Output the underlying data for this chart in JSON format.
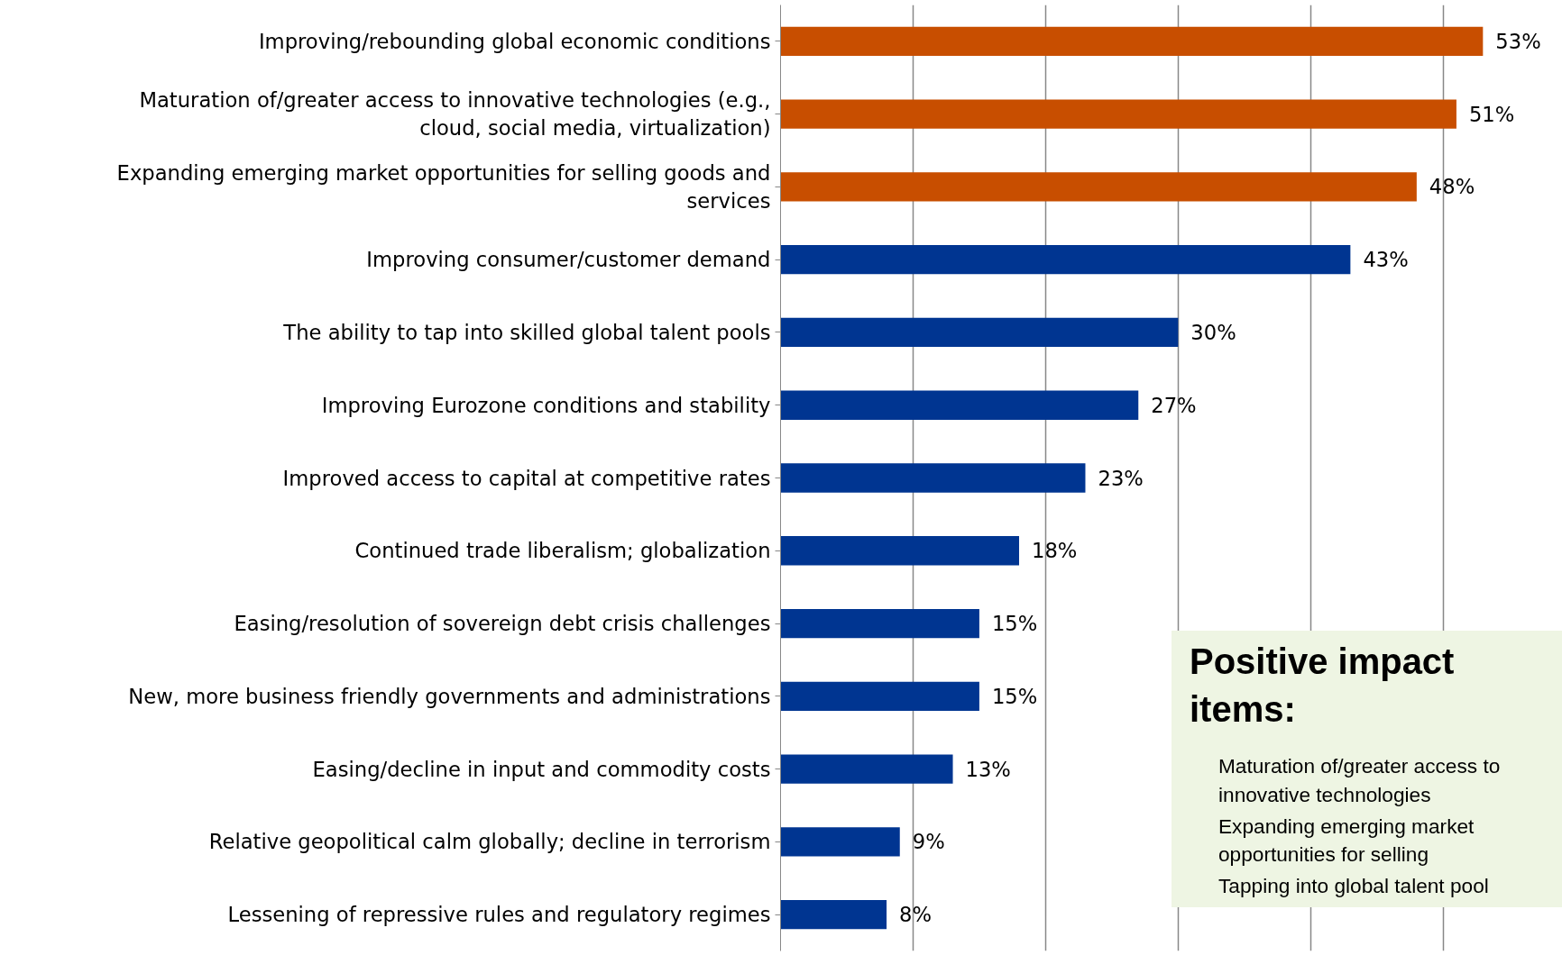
{
  "chart_data": {
    "type": "bar",
    "orientation": "horizontal",
    "categories": [
      "Improving/rebounding global economic conditions",
      "Maturation of/greater access to innovative technologies (e.g., cloud, social media, virtualization)",
      "Expanding emerging market opportunities for selling goods and services",
      "Improving consumer/customer demand",
      "The ability to tap into skilled global talent pools",
      "Improving Eurozone conditions and stability",
      "Improved access to capital at competitive rates",
      "Continued trade liberalism; globalization",
      "Easing/resolution of sovereign debt crisis challenges",
      "New, more business friendly governments and administrations",
      "Easing/decline in input and commodity costs",
      "Relative geopolitical calm globally; decline in terrorism",
      "Lessening of repressive rules and regulatory regimes"
    ],
    "values": [
      53,
      51,
      48,
      43,
      30,
      27,
      23,
      18,
      15,
      15,
      13,
      9,
      8
    ],
    "value_labels": [
      "53%",
      "51%",
      "48%",
      "43%",
      "30%",
      "27%",
      "23%",
      "18%",
      "15%",
      "15%",
      "13%",
      "9%",
      "8%"
    ],
    "colors": [
      "#c84e00",
      "#c84e00",
      "#c84e00",
      "#003591",
      "#003591",
      "#003591",
      "#003591",
      "#003591",
      "#003591",
      "#003591",
      "#003591",
      "#003591",
      "#003591"
    ],
    "xlim": [
      0,
      59
    ],
    "xticks": [
      {
        "value": 0,
        "label": null
      },
      {
        "value": 10,
        "label": null
      },
      {
        "value": 20,
        "label": null
      },
      {
        "value": 30,
        "label": null
      },
      {
        "value": 40,
        "label": null
      },
      {
        "value": 50,
        "label": null
      }
    ],
    "grid": "x",
    "tick_labels": "y",
    "annotations": [
      "Positive impact items:",
      "Maturation of/greater access to innovative technologies",
      "Expanding emerging market opportunities for selling",
      "Tapping into global talent pool"
    ]
  }
}
